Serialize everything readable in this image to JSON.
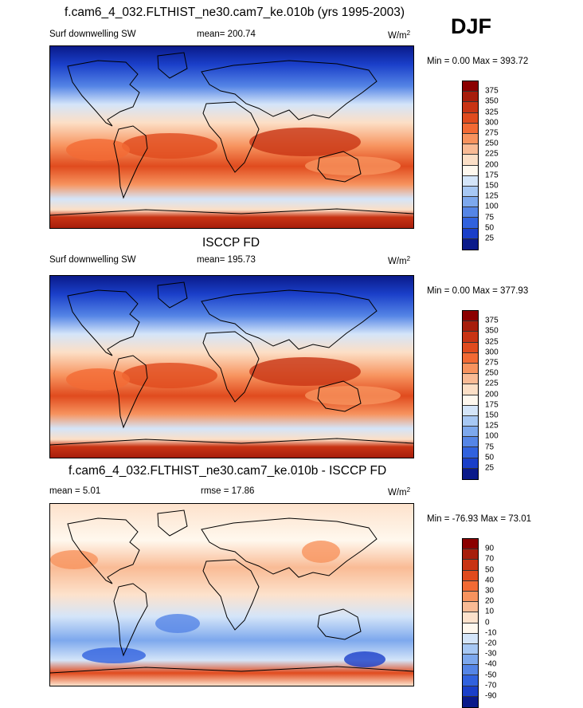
{
  "season": "DJF",
  "chart_data": [
    {
      "type": "heatmap",
      "title": "f.cam6_4_032.FLTHIST_ne30.cam7_ke.010b (yrs 1995-2003)",
      "left_label": "Surf downwelling SW",
      "mean_text": "mean= 200.74",
      "units_base": "W/m",
      "units_exp": "2",
      "minmax_text": "Min =   0.00 Max = 393.72",
      "min": 0.0,
      "max": 393.72,
      "mean": 200.74,
      "colorbar_levels": [
        "375",
        "350",
        "325",
        "300",
        "275",
        "250",
        "225",
        "200",
        "175",
        "150",
        "125",
        "100",
        "75",
        "50",
        "25"
      ],
      "colorbar_colors": [
        "#8b0000",
        "#a71e0c",
        "#c83414",
        "#e04b1e",
        "#f26a34",
        "#f7935e",
        "#f9bb95",
        "#fcdfc6",
        "#fff8ee",
        "#d4e5f9",
        "#a7c8f4",
        "#7da8ed",
        "#5585e6",
        "#3162de",
        "#1a3fc9",
        "#0a1a8a"
      ]
    },
    {
      "type": "heatmap",
      "title": "ISCCP FD",
      "left_label": "Surf downwelling SW",
      "mean_text": "mean= 195.73",
      "units_base": "W/m",
      "units_exp": "2",
      "minmax_text": "Min =   0.00 Max = 377.93",
      "min": 0.0,
      "max": 377.93,
      "mean": 195.73,
      "colorbar_levels": [
        "375",
        "350",
        "325",
        "300",
        "275",
        "250",
        "225",
        "200",
        "175",
        "150",
        "125",
        "100",
        "75",
        "50",
        "25"
      ],
      "colorbar_colors": [
        "#8b0000",
        "#a71e0c",
        "#c83414",
        "#e04b1e",
        "#f26a34",
        "#f7935e",
        "#f9bb95",
        "#fcdfc6",
        "#fff8ee",
        "#d4e5f9",
        "#a7c8f4",
        "#7da8ed",
        "#5585e6",
        "#3162de",
        "#1a3fc9",
        "#0a1a8a"
      ]
    },
    {
      "type": "heatmap",
      "title": "f.cam6_4_032.FLTHIST_ne30.cam7_ke.010b - ISCCP FD",
      "left_label": "mean =   5.01",
      "mean_text": "rmse =  17.86",
      "units_base": "W/m",
      "units_exp": "2",
      "minmax_text": "Min = -76.93 Max =  73.01",
      "min": -76.93,
      "max": 73.01,
      "mean": 5.01,
      "rmse": 17.86,
      "colorbar_levels": [
        "90",
        "70",
        "50",
        "40",
        "30",
        "20",
        "10",
        "0",
        "-10",
        "-20",
        "-30",
        "-40",
        "-50",
        "-70",
        "-90"
      ],
      "colorbar_colors": [
        "#8b0000",
        "#a71e0c",
        "#c83414",
        "#e04b1e",
        "#f26a34",
        "#f7935e",
        "#f9bb95",
        "#fde2cc",
        "#fff8ee",
        "#d4e5f9",
        "#a7c8f4",
        "#7da8ed",
        "#5585e6",
        "#3162de",
        "#1a3fc9",
        "#0a1a8a"
      ]
    }
  ]
}
